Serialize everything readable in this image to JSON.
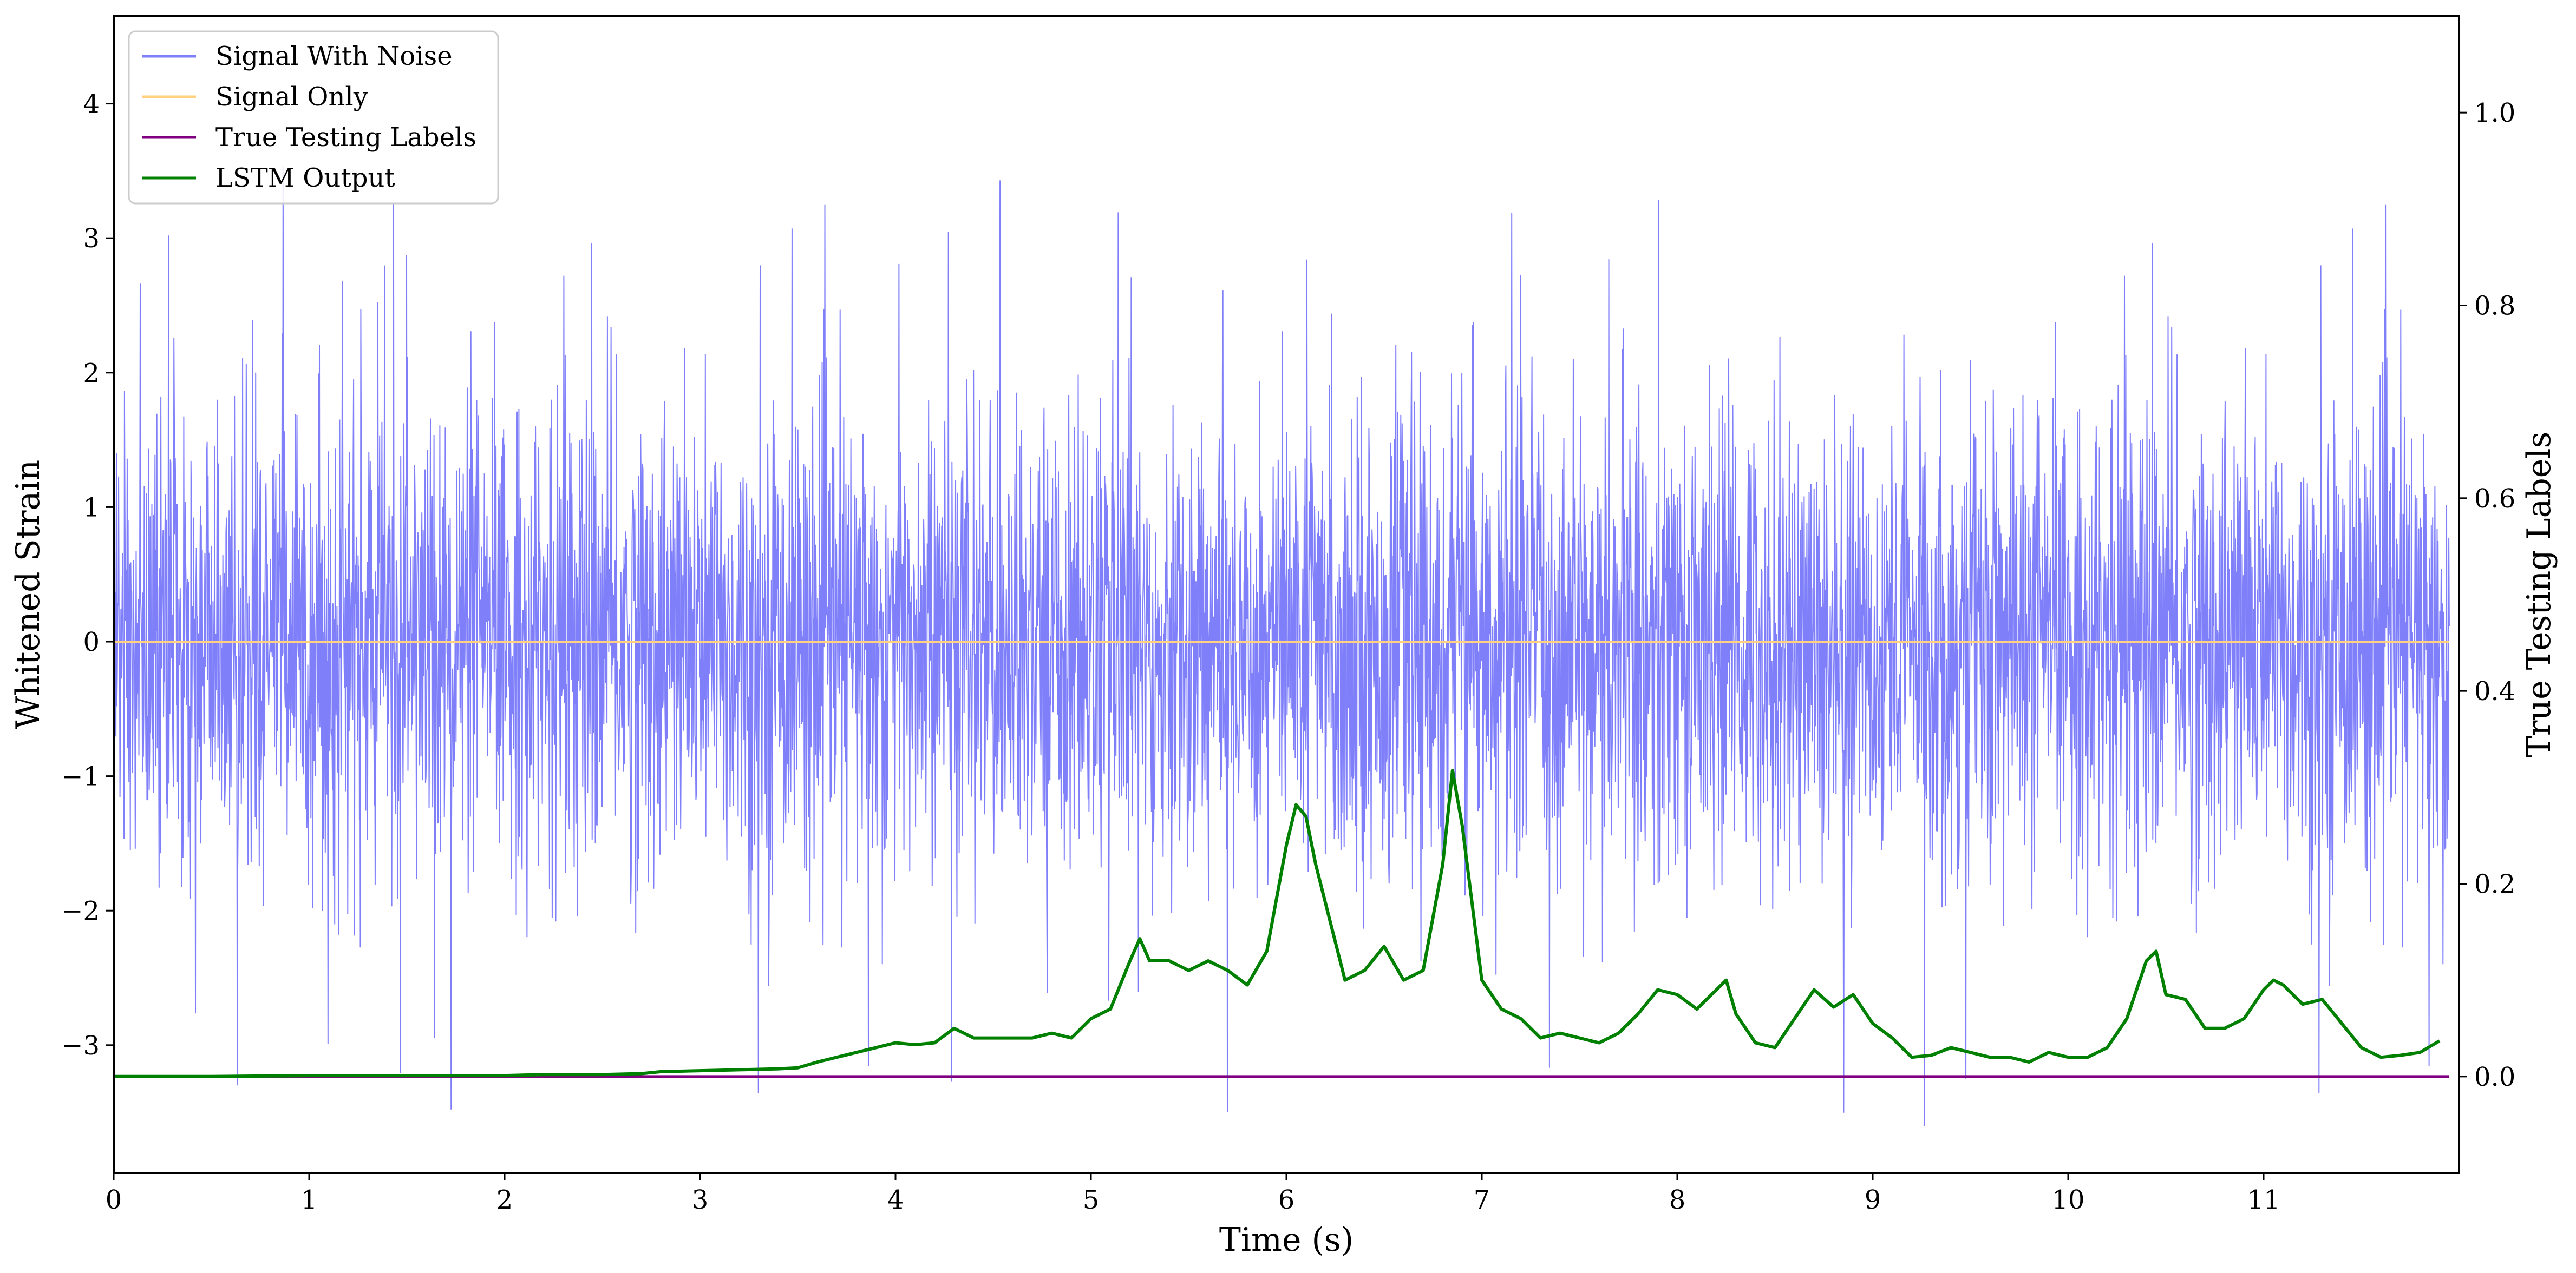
{
  "chart_data": {
    "type": "line",
    "xlabel": "Time (s)",
    "ylabel": "Whitened Strain",
    "y2label": "True Testing Labels",
    "xlim": [
      0,
      12
    ],
    "ylim": [
      -3.95,
      4.65
    ],
    "y2lim": [
      -0.1,
      1.1
    ],
    "xticks": [
      0,
      1,
      2,
      3,
      4,
      5,
      6,
      7,
      8,
      9,
      10,
      11
    ],
    "yticks": [
      -3,
      -2,
      -1,
      0,
      1,
      2,
      3,
      4
    ],
    "y2ticks": [
      0.0,
      0.2,
      0.4,
      0.6,
      0.8,
      1.0
    ],
    "legend_position": "top-left",
    "grid": false,
    "colors": {
      "noise": "#7f7ffa",
      "signal": "#ffd180",
      "labels": "#800080",
      "lstm": "#008000"
    },
    "series": [
      {
        "name": "Signal With Noise",
        "axis": "left",
        "description_values": "dense gaussian-like noise between about -2.5 and 2.5 with spikes to about -3.6 and 3.6",
        "amplitude_range": [
          -3.6,
          3.6
        ]
      },
      {
        "name": "Signal Only",
        "axis": "left",
        "x": [
          0,
          11.95
        ],
        "y": [
          0,
          0
        ]
      },
      {
        "name": "True Testing Labels",
        "axis": "right",
        "x": [
          0,
          11.95
        ],
        "y": [
          0,
          0
        ]
      },
      {
        "name": "LSTM Output",
        "axis": "right",
        "x": [
          0,
          0.5,
          1.0,
          1.5,
          2.0,
          2.2,
          2.5,
          2.7,
          2.8,
          3.0,
          3.2,
          3.4,
          3.5,
          3.6,
          3.7,
          3.8,
          3.9,
          4.0,
          4.1,
          4.2,
          4.3,
          4.4,
          4.5,
          4.6,
          4.7,
          4.8,
          4.9,
          5.0,
          5.1,
          5.2,
          5.25,
          5.3,
          5.4,
          5.5,
          5.6,
          5.7,
          5.8,
          5.9,
          6.0,
          6.05,
          6.1,
          6.15,
          6.2,
          6.3,
          6.4,
          6.5,
          6.6,
          6.7,
          6.8,
          6.85,
          6.9,
          7.0,
          7.1,
          7.2,
          7.3,
          7.4,
          7.5,
          7.6,
          7.7,
          7.8,
          7.9,
          8.0,
          8.1,
          8.2,
          8.25,
          8.3,
          8.4,
          8.5,
          8.6,
          8.7,
          8.8,
          8.9,
          9.0,
          9.1,
          9.2,
          9.3,
          9.4,
          9.5,
          9.6,
          9.7,
          9.8,
          9.9,
          10.0,
          10.1,
          10.2,
          10.3,
          10.4,
          10.45,
          10.5,
          10.6,
          10.7,
          10.8,
          10.9,
          11.0,
          11.05,
          11.1,
          11.2,
          11.3,
          11.4,
          11.5,
          11.6,
          11.7,
          11.8,
          11.9
        ],
        "y": [
          0.0,
          0.0,
          0.001,
          0.001,
          0.001,
          0.002,
          0.002,
          0.003,
          0.005,
          0.006,
          0.007,
          0.008,
          0.009,
          0.015,
          0.02,
          0.025,
          0.03,
          0.035,
          0.033,
          0.035,
          0.05,
          0.04,
          0.04,
          0.04,
          0.04,
          0.045,
          0.04,
          0.06,
          0.07,
          0.12,
          0.143,
          0.12,
          0.12,
          0.11,
          0.12,
          0.11,
          0.095,
          0.13,
          0.24,
          0.282,
          0.27,
          0.22,
          0.18,
          0.1,
          0.11,
          0.135,
          0.1,
          0.11,
          0.22,
          0.3175,
          0.26,
          0.1,
          0.07,
          0.06,
          0.04,
          0.045,
          0.04,
          0.035,
          0.045,
          0.065,
          0.09,
          0.085,
          0.07,
          0.09,
          0.1,
          0.065,
          0.035,
          0.03,
          0.06,
          0.09,
          0.072,
          0.085,
          0.055,
          0.04,
          0.02,
          0.022,
          0.03,
          0.025,
          0.02,
          0.02,
          0.015,
          0.025,
          0.02,
          0.02,
          0.03,
          0.06,
          0.12,
          0.13,
          0.085,
          0.08,
          0.05,
          0.05,
          0.06,
          0.09,
          0.1,
          0.095,
          0.075,
          0.08,
          0.055,
          0.03,
          0.02,
          0.022,
          0.025,
          0.037
        ]
      }
    ]
  }
}
